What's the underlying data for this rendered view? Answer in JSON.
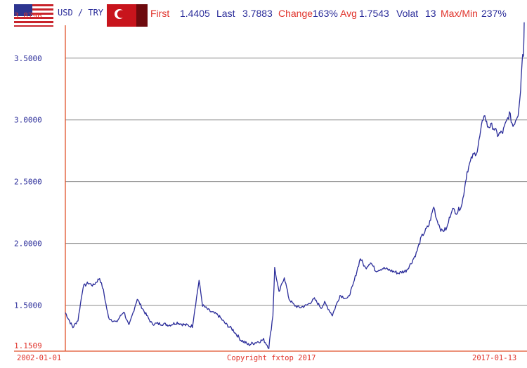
{
  "header": {
    "pair": "USD / TRY",
    "first_label": "First",
    "first_value": "1.4405",
    "last_label": "Last",
    "last_value": "3.7883",
    "change_label": "Change",
    "change_value": "163%",
    "avg_label": "Avg",
    "avg_value": "1.7543",
    "volat_label": "Volat",
    "volat_value": "13",
    "maxmin_label": "Max/Min",
    "maxmin_value": "237%"
  },
  "footer": {
    "start_date": "2002-01-01",
    "end_date": "2017-01-13",
    "copyright": "Copyright fxtop 2017"
  },
  "colors": {
    "series": "#2b2d9a",
    "axis": "#e0522a",
    "grid": "#8c8c8c",
    "text_blue": "#2b2d9a",
    "text_red": "#e0322a"
  },
  "chart_data": {
    "type": "line",
    "title": "",
    "xlabel": "",
    "ylabel": "",
    "x_range": [
      "2002-01-01",
      "2017-01-13"
    ],
    "ylim": [
      1.1509,
      3.8796
    ],
    "y_ticks": [
      {
        "value": 3.8796,
        "label": "3.8796"
      },
      {
        "value": 3.5,
        "label": "3.5000"
      },
      {
        "value": 3.0,
        "label": "3.0000"
      },
      {
        "value": 2.5,
        "label": "2.5000"
      },
      {
        "value": 2.0,
        "label": "2.0000"
      },
      {
        "value": 1.5,
        "label": "1.5000"
      },
      {
        "value": 1.1509,
        "label": "1.1509"
      }
    ],
    "grid": true,
    "series": [
      {
        "x": [
          "2002-01-01",
          "2002-04-01",
          "2002-06-01",
          "2002-08-01",
          "2002-10-01",
          "2002-12-01",
          "2003-02-15",
          "2003-04-01",
          "2003-06-01",
          "2003-09-01",
          "2003-12-01",
          "2004-02-01",
          "2004-05-10",
          "2004-08-01",
          "2004-11-01",
          "2005-03-01",
          "2005-06-01",
          "2005-09-01",
          "2005-12-01",
          "2006-03-01",
          "2006-05-20",
          "2006-07-01",
          "2006-10-01",
          "2007-01-01",
          "2007-04-01",
          "2007-07-01",
          "2007-10-01",
          "2008-01-01",
          "2008-04-01",
          "2008-07-01",
          "2008-09-01",
          "2008-10-20",
          "2008-11-10",
          "2009-01-01",
          "2009-03-05",
          "2009-05-01",
          "2009-07-01",
          "2009-09-01",
          "2009-12-01",
          "2010-03-01",
          "2010-05-20",
          "2010-07-01",
          "2010-10-01",
          "2011-01-01",
          "2011-04-01",
          "2011-06-01",
          "2011-09-01",
          "2011-11-01",
          "2012-01-01",
          "2012-03-01",
          "2012-06-01",
          "2012-09-01",
          "2012-12-01",
          "2013-03-01",
          "2013-05-01",
          "2013-07-01",
          "2013-09-01",
          "2013-12-01",
          "2014-01-27",
          "2014-03-01",
          "2014-05-01",
          "2014-07-01",
          "2014-09-01",
          "2014-11-01",
          "2015-01-01",
          "2015-03-01",
          "2015-05-01",
          "2015-07-01",
          "2015-09-20",
          "2015-11-01",
          "2016-01-01",
          "2016-03-01",
          "2016-05-01",
          "2016-07-20",
          "2016-09-01",
          "2016-11-01",
          "2016-12-01",
          "2016-12-20",
          "2017-01-05",
          "2017-01-13"
        ],
        "y": [
          1.44,
          1.32,
          1.38,
          1.65,
          1.68,
          1.66,
          1.72,
          1.62,
          1.4,
          1.36,
          1.45,
          1.33,
          1.55,
          1.45,
          1.35,
          1.35,
          1.34,
          1.36,
          1.34,
          1.33,
          1.7,
          1.5,
          1.45,
          1.42,
          1.35,
          1.3,
          1.22,
          1.18,
          1.2,
          1.22,
          1.16,
          1.42,
          1.8,
          1.6,
          1.73,
          1.55,
          1.5,
          1.48,
          1.5,
          1.55,
          1.48,
          1.52,
          1.42,
          1.58,
          1.55,
          1.65,
          1.88,
          1.8,
          1.85,
          1.78,
          1.8,
          1.78,
          1.76,
          1.78,
          1.84,
          1.92,
          2.05,
          2.15,
          2.3,
          2.2,
          2.1,
          2.12,
          2.28,
          2.25,
          2.32,
          2.58,
          2.7,
          2.75,
          3.05,
          2.95,
          2.95,
          2.88,
          2.9,
          3.05,
          2.95,
          3.05,
          3.25,
          3.5,
          3.55,
          3.79
        ]
      }
    ]
  }
}
